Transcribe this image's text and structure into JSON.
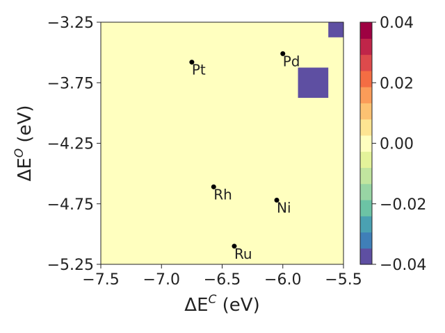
{
  "chart_data": {
    "type": "heatmap",
    "xlabel": "ΔE",
    "xlabel_sup": "C",
    "xlabel_unit": " (eV)",
    "ylabel": "ΔE",
    "ylabel_sup": "O",
    "ylabel_unit": " (eV)",
    "xlim": [
      -7.5,
      -5.5
    ],
    "ylim": [
      -5.25,
      -3.25
    ],
    "xticks": [
      -7.5,
      -7.0,
      -6.5,
      -6.0,
      -5.5
    ],
    "xtick_labels": [
      "−7.5",
      "−7.0",
      "−6.5",
      "−6.0",
      "−5.5"
    ],
    "yticks": [
      -3.25,
      -3.75,
      -4.25,
      -4.75,
      -5.25
    ],
    "ytick_labels": [
      "−3.25",
      "−3.75",
      "−4.25",
      "−4.75",
      "−5.25"
    ],
    "background_value": 0.0,
    "cells": [
      {
        "x0": -5.625,
        "x1": -5.5,
        "y0": -3.375,
        "y1": -3.25,
        "value": -0.04
      },
      {
        "x0": -5.875,
        "x1": -5.625,
        "y0": -3.875,
        "y1": -3.625,
        "value": -0.04
      }
    ],
    "points": [
      {
        "label": "Pt",
        "x": -6.75,
        "y": -3.58
      },
      {
        "label": "Pd",
        "x": -6.0,
        "y": -3.51
      },
      {
        "label": "Rh",
        "x": -6.57,
        "y": -4.61
      },
      {
        "label": "Ni",
        "x": -6.05,
        "y": -4.72
      },
      {
        "label": "Ru",
        "x": -6.4,
        "y": -5.1
      }
    ],
    "colorbar": {
      "colormap": "Spectral",
      "vmin": -0.04,
      "vmax": 0.04,
      "ticks": [
        0.04,
        0.02,
        0.0,
        -0.02,
        -0.04
      ],
      "tick_labels": [
        "0.04",
        "0.02",
        "0.00",
        "−0.02",
        "−0.04"
      ],
      "bands": [
        "#5e4fa2",
        "#3f7fb8",
        "#4aa1b2",
        "#6cc3a5",
        "#98d5a4",
        "#c1e59f",
        "#e4f39a",
        "#ffffbf",
        "#fee592",
        "#fdc272",
        "#fb9c59",
        "#f46d43",
        "#dd4a4c",
        "#c02549",
        "#9e0142"
      ]
    },
    "colors": {
      "background": "#ffffbf",
      "cell": "#5e4fa2",
      "point": "#000000"
    }
  }
}
